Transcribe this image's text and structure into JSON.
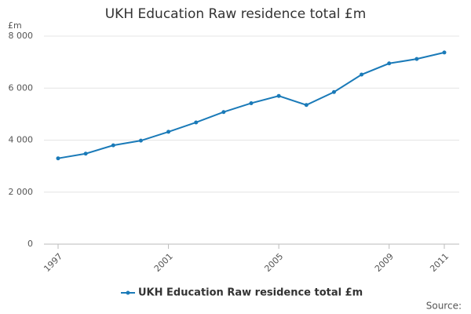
{
  "chart_data": {
    "type": "line",
    "title": "UKH Education Raw residence total £m",
    "y_unit_label": "£m",
    "x": [
      1997,
      1998,
      1999,
      2000,
      2001,
      2002,
      2003,
      2004,
      2005,
      2006,
      2007,
      2008,
      2009,
      2010,
      2011
    ],
    "series": [
      {
        "name": "UKH Education Raw residence total £m",
        "color": "#1a7ab8",
        "values": [
          3300,
          3480,
          3800,
          3980,
          4320,
          4680,
          5080,
          5420,
          5700,
          5350,
          5850,
          6520,
          6950,
          7120,
          7370
        ]
      }
    ],
    "xlim": [
      1997,
      2011
    ],
    "xticks": [
      1997,
      2001,
      2005,
      2009,
      2011
    ],
    "ylim": [
      0,
      8000
    ],
    "yticks": [
      0,
      {
        "value": 2000,
        "label": "2 000"
      },
      {
        "value": 4000,
        "label": "4 000"
      },
      {
        "value": 6000,
        "label": "6 000"
      },
      {
        "value": 8000,
        "label": "8 000"
      }
    ],
    "grid": true,
    "legend": "bottom",
    "source": "Source:"
  }
}
